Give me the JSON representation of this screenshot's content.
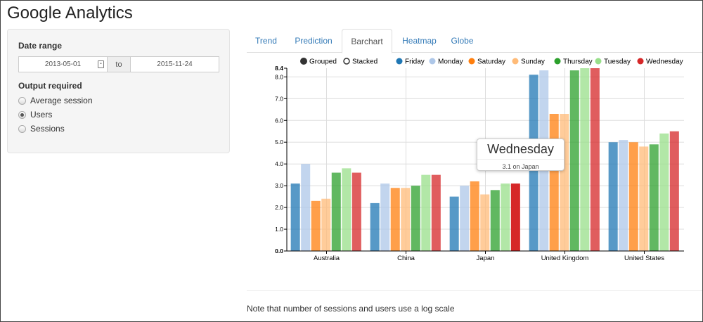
{
  "app": {
    "title": "Google Analytics"
  },
  "sidebar": {
    "date_range_label": "Date range",
    "start_date": "2013-05-01",
    "to_label": "to",
    "end_date": "2015-11-24",
    "output_label": "Output required",
    "options": [
      {
        "label": "Average session",
        "checked": false
      },
      {
        "label": "Users",
        "checked": true
      },
      {
        "label": "Sessions",
        "checked": false
      }
    ]
  },
  "tabs": [
    {
      "label": "Trend",
      "active": false
    },
    {
      "label": "Prediction",
      "active": false
    },
    {
      "label": "Barchart",
      "active": true
    },
    {
      "label": "Heatmap",
      "active": false
    },
    {
      "label": "Globe",
      "active": false
    }
  ],
  "chart_controls": {
    "grouped_label": "Grouped",
    "stacked_label": "Stacked",
    "selected": "Grouped"
  },
  "tooltip": {
    "title": "Wednesday",
    "body": "3.1 on Japan"
  },
  "note": "Note that number of sessions and users use a log scale",
  "chart_data": {
    "type": "bar",
    "categories": [
      "Australia",
      "China",
      "Japan",
      "United Kingdom",
      "United States"
    ],
    "ylim": [
      0,
      8.4
    ],
    "yticks": [
      "0.0",
      "1.0",
      "2.0",
      "3.0",
      "4.0",
      "5.0",
      "6.0",
      "7.0",
      "8.0",
      "8.4"
    ],
    "grid": true,
    "legend_position": "top",
    "highlighted": {
      "series": "Wednesday",
      "category": "Japan"
    },
    "series": [
      {
        "name": "Friday",
        "color": "#1f77b4",
        "values": [
          3.1,
          2.2,
          2.5,
          8.1,
          5.0
        ]
      },
      {
        "name": "Monday",
        "color": "#aec7e8",
        "values": [
          4.0,
          3.1,
          3.0,
          8.3,
          5.1
        ]
      },
      {
        "name": "Saturday",
        "color": "#ff7f0e",
        "values": [
          2.3,
          2.9,
          3.2,
          6.3,
          5.0
        ]
      },
      {
        "name": "Sunday",
        "color": "#ffbb78",
        "values": [
          2.4,
          2.9,
          2.6,
          6.3,
          4.8
        ]
      },
      {
        "name": "Thursday",
        "color": "#2ca02c",
        "values": [
          3.6,
          3.0,
          2.8,
          8.3,
          4.9
        ]
      },
      {
        "name": "Tuesday",
        "color": "#98df8a",
        "values": [
          3.8,
          3.5,
          3.1,
          8.4,
          5.4
        ]
      },
      {
        "name": "Wednesday",
        "color": "#d62728",
        "values": [
          3.6,
          3.5,
          3.1,
          8.4,
          5.5
        ]
      }
    ]
  }
}
